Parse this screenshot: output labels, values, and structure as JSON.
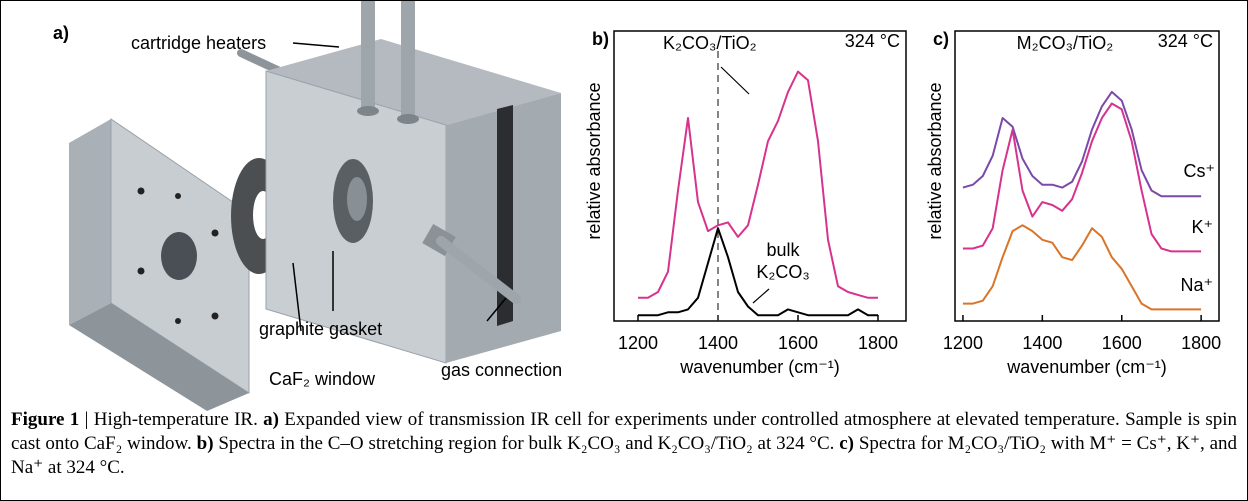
{
  "panel_a": {
    "label": "a)",
    "callouts": [
      "cartridge heaters",
      "graphite gasket",
      "CaF₂ window",
      "gas connection"
    ]
  },
  "chart_data": [
    {
      "type": "line",
      "panel_label": "b)",
      "temperature": "324 °C",
      "xlabel": "wavenumber (cm⁻¹)",
      "ylabel": "relative absorbance",
      "x": [
        1200,
        1225,
        1250,
        1275,
        1300,
        1325,
        1350,
        1375,
        1400,
        1425,
        1450,
        1475,
        1500,
        1525,
        1550,
        1575,
        1600,
        1625,
        1650,
        1675,
        1700,
        1725,
        1750,
        1775,
        1800
      ],
      "series": [
        {
          "name": "K₂CO₃/TiO₂",
          "color": "#d6338f",
          "values": [
            0.08,
            0.08,
            0.1,
            0.17,
            0.45,
            0.7,
            0.41,
            0.31,
            0.33,
            0.34,
            0.29,
            0.33,
            0.47,
            0.62,
            0.69,
            0.79,
            0.86,
            0.83,
            0.62,
            0.28,
            0.12,
            0.1,
            0.09,
            0.08,
            0.08
          ]
        },
        {
          "name": "bulk K₂CO₃",
          "color": "#000000",
          "values": [
            0.02,
            0.02,
            0.02,
            0.03,
            0.03,
            0.04,
            0.08,
            0.2,
            0.32,
            0.22,
            0.1,
            0.05,
            0.02,
            0.02,
            0.02,
            0.04,
            0.03,
            0.02,
            0.02,
            0.02,
            0.02,
            0.02,
            0.04,
            0.02,
            0.02
          ]
        }
      ],
      "reference_line_x": 1400,
      "xlim": [
        1140,
        1870
      ],
      "ylim": [
        0,
        1
      ],
      "xticks": [
        1200,
        1400,
        1600,
        1800
      ]
    },
    {
      "type": "line",
      "panel_label": "c)",
      "temperature": "324 °C",
      "title": "M₂CO₃/TiO₂",
      "xlabel": "wavenumber (cm⁻¹)",
      "ylabel": "relative absorbance",
      "x": [
        1200,
        1225,
        1250,
        1275,
        1300,
        1325,
        1350,
        1375,
        1400,
        1425,
        1450,
        1475,
        1500,
        1525,
        1550,
        1575,
        1600,
        1625,
        1650,
        1675,
        1700,
        1725,
        1750,
        1775,
        1800
      ],
      "series": [
        {
          "name": "Cs⁺",
          "color": "#7b4aa8",
          "values": [
            0.46,
            0.47,
            0.5,
            0.57,
            0.7,
            0.67,
            0.56,
            0.5,
            0.47,
            0.47,
            0.46,
            0.48,
            0.55,
            0.66,
            0.74,
            0.79,
            0.76,
            0.66,
            0.52,
            0.45,
            0.43,
            0.43,
            0.43,
            0.43,
            0.43
          ]
        },
        {
          "name": "K⁺",
          "color": "#d6338f",
          "values": [
            0.25,
            0.25,
            0.26,
            0.32,
            0.52,
            0.66,
            0.45,
            0.36,
            0.41,
            0.4,
            0.38,
            0.42,
            0.51,
            0.62,
            0.7,
            0.75,
            0.73,
            0.62,
            0.45,
            0.3,
            0.25,
            0.24,
            0.24,
            0.24,
            0.24
          ]
        },
        {
          "name": "Na⁺",
          "color": "#d9752a",
          "values": [
            0.06,
            0.06,
            0.07,
            0.12,
            0.22,
            0.31,
            0.33,
            0.31,
            0.28,
            0.27,
            0.22,
            0.21,
            0.26,
            0.32,
            0.29,
            0.22,
            0.18,
            0.12,
            0.06,
            0.04,
            0.04,
            0.04,
            0.04,
            0.04,
            0.04
          ]
        }
      ],
      "xlim": [
        1180,
        1845
      ],
      "ylim": [
        0,
        1
      ],
      "xticks": [
        1200,
        1400,
        1600,
        1800
      ]
    }
  ],
  "caption": {
    "figure_label": "Figure 1",
    "separator": "|",
    "title": "High-temperature IR.",
    "parts": [
      {
        "label": "a)",
        "text": "Expanded view of transmission IR cell for experiments under controlled atmosphere at elevated temperature. Sample is spin cast onto CaF₂ window."
      },
      {
        "label": "b)",
        "text": "Spectra in the C–O stretching region for bulk K₂CO₃ and K₂CO₃/TiO₂ at 324 °C."
      },
      {
        "label": "c)",
        "text": "Spectra for M₂CO₃/TiO₂ with M⁺ = Cs⁺, K⁺, and Na⁺ at 324 °C."
      }
    ]
  }
}
